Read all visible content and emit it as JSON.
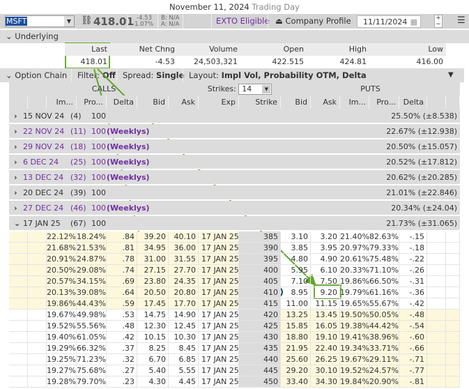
{
  "title": {
    "date": "November 11, 2024",
    "status": "Trading Day"
  },
  "toolbar": {
    "symbol": "MSFT",
    "last": "418.01",
    "chg": "-4.53",
    "chg_pct": "-1.07%",
    "bid": "B: N/A",
    "ask": "A: N/A",
    "exto": "EXTO Eligible",
    "company_profile": "Company Profile",
    "date": "11/11/2024"
  },
  "underlying": {
    "label": "Underlying",
    "headers": [
      "Last",
      "Net Chng",
      "Volume",
      "Open",
      "High",
      "Low"
    ],
    "values": [
      "418.01",
      "-4.53",
      "24,503,321",
      "422.515",
      "424.81",
      "416.00"
    ]
  },
  "option_chain": {
    "label": "Option Chain",
    "filter_label": "Filter:",
    "filter": "Off",
    "spread_label": "Spread:",
    "spread": "Single",
    "layout_label": "Layout:",
    "layout": "Impl Vol, Probability OTM, Delta",
    "calls": "CALLS",
    "puts": "PUTS",
    "strikes_label": "Strikes:",
    "strikes": "14"
  },
  "columns": [
    "",
    "",
    "Im...",
    "Pro...",
    "Delta",
    "Bid",
    "Ask",
    "Exp",
    "Strike",
    "Bid",
    "Ask",
    "Im...",
    "Pro...",
    "Delta",
    "",
    ""
  ],
  "expirations": [
    {
      "date": "15 NOV 24",
      "days": "(4)",
      "mult": "100",
      "weekly": "",
      "iv": "25.50% (±8.538)"
    },
    {
      "date": "22 NOV 24",
      "days": "(11)",
      "mult": "100",
      "weekly": "(Weeklys)",
      "iv": "22.67% (±12.938)"
    },
    {
      "date": "29 NOV 24",
      "days": "(18)",
      "mult": "100",
      "weekly": "(Weeklys)",
      "iv": "20.50% (±15.057)"
    },
    {
      "date": "6 DEC 24",
      "days": "(25)",
      "mult": "100",
      "weekly": "(Weeklys)",
      "iv": "20.52% (±17.812)"
    },
    {
      "date": "13 DEC 24",
      "days": "(32)",
      "mult": "100",
      "weekly": "(Weeklys)",
      "iv": "20.62% (±20.285)"
    },
    {
      "date": "20 DEC 24",
      "days": "(39)",
      "mult": "100",
      "weekly": "",
      "iv": "21.01% (±22.846)"
    },
    {
      "date": "27 DEC 24",
      "days": "(46)",
      "mult": "100",
      "weekly": "(Weeklys)",
      "iv": "20.34% (±24.04)"
    },
    {
      "date": "17 JAN 25",
      "days": "(67)",
      "mult": "100",
      "weekly": "",
      "iv": "21.73% (±31.065)",
      "expanded": true
    }
  ],
  "rows": [
    [
      "22.12%",
      "18.24%",
      ".84",
      "39.20",
      "40.10",
      "17 JAN 25",
      "385",
      "3.10",
      "3.20",
      "21.40%",
      "82.63%",
      "-.15"
    ],
    [
      "21.68%",
      "21.53%",
      ".81",
      "34.95",
      "36.00",
      "17 JAN 25",
      "390",
      "3.85",
      "3.95",
      "20.97%",
      "79.33%",
      "-.18"
    ],
    [
      "20.91%",
      "24.87%",
      ".78",
      "31.00",
      "31.55",
      "17 JAN 25",
      "395",
      "4.80",
      "4.90",
      "20.61%",
      "75.48%",
      "-.22"
    ],
    [
      "20.50%",
      "29.08%",
      ".74",
      "27.15",
      "27.70",
      "17 JAN 25",
      "400",
      "5.95",
      "6.10",
      "20.33%",
      "71.10%",
      "-.26"
    ],
    [
      "20.57%",
      "34.15%",
      ".69",
      "23.80",
      "24.35",
      "17 JAN 25",
      "405",
      "7.10",
      "7.50",
      "19.86%",
      "66.50%",
      "-.31"
    ],
    [
      "20.13%",
      "39.08%",
      ".64",
      "20.50",
      "20.80",
      "17 JAN 25",
      "410",
      "8.95",
      "9.20",
      "19.79%",
      "61.16%",
      "-.36"
    ],
    [
      "19.86%",
      "44.43%",
      ".59",
      "17.45",
      "17.70",
      "17 JAN 25",
      "415",
      "11.00",
      "11.15",
      "19.65%",
      "55.67%",
      "-.42"
    ],
    [
      "19.67%",
      "49.98%",
      ".53",
      "14.75",
      "14.90",
      "17 JAN 25",
      "420",
      "13.25",
      "13.45",
      "19.50%",
      "50.05%",
      "-.48"
    ],
    [
      "19.52%",
      "55.56%",
      ".48",
      "12.30",
      "12.45",
      "17 JAN 25",
      "425",
      "15.85",
      "16.05",
      "19.38%",
      "44.42%",
      "-.54"
    ],
    [
      "19.40%",
      "61.05%",
      ".42",
      "10.15",
      "10.30",
      "17 JAN 25",
      "430",
      "18.80",
      "19.10",
      "19.41%",
      "38.96%",
      "-.60"
    ],
    [
      "19.29%",
      "66.32%",
      ".37",
      "8.25",
      "8.45",
      "17 JAN 25",
      "435",
      "21.95",
      "22.40",
      "19.34%",
      "33.71%",
      "-.66"
    ],
    [
      "19.25%",
      "71.23%",
      ".32",
      "6.70",
      "6.85",
      "17 JAN 25",
      "440",
      "25.60",
      "26.25",
      "19.67%",
      "29.11%",
      "-.71"
    ],
    [
      "19.27%",
      "75.68%",
      ".27",
      "5.40",
      "5.55",
      "17 JAN 25",
      "445",
      "29.20",
      "30.10",
      "19.52%",
      "24.57%",
      "-.77"
    ],
    [
      "19.28%",
      "79.70%",
      ".23",
      "4.30",
      "4.45",
      "17 JAN 25",
      "450",
      "33.40",
      "34.30",
      "19.84%",
      "20.90%",
      "-.81"
    ]
  ],
  "itm_calls_rows": 7,
  "highlight": {
    "call_bid_strike": "410",
    "put_ask_strike": "410"
  },
  "colors": {
    "itm": "#fdf8dc",
    "weekly": "#7030a0",
    "annotation_arrow": "#5fa52a",
    "red_box": "#c00000",
    "circle": "#1f3c6e"
  }
}
